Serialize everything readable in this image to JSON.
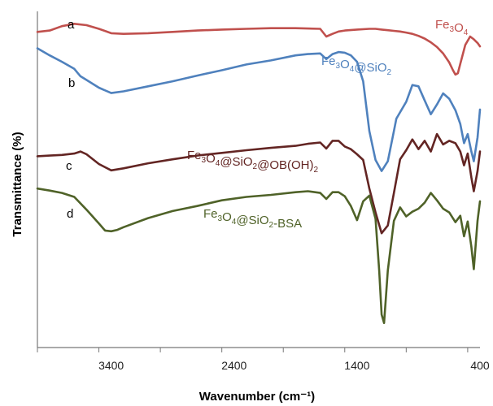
{
  "chart_data": {
    "type": "line",
    "xlabel": "Wavenumber (cm⁻¹)",
    "ylabel": "Transmittance (%)",
    "x_reversed": true,
    "xlim": [
      4000,
      400
    ],
    "xticks": [
      3400,
      2400,
      1400,
      400
    ],
    "ylim": [
      0,
      100
    ],
    "grid": false,
    "series": [
      {
        "letter": "a",
        "name_parts": [
          [
            "Fe",
            "n"
          ],
          [
            "3",
            "s"
          ],
          [
            "O",
            "n"
          ],
          [
            "4",
            "s"
          ]
        ],
        "color": "#c0504d",
        "label_pos": [
          535,
          35
        ],
        "letter_pos": [
          83,
          35
        ],
        "x": [
          4000,
          3900,
          3800,
          3700,
          3600,
          3500,
          3400,
          3300,
          3100,
          2900,
          2700,
          2500,
          2300,
          2100,
          1900,
          1700,
          1650,
          1600,
          1550,
          1500,
          1400,
          1300,
          1250,
          1200,
          1150,
          1100,
          1050,
          1000,
          950,
          900,
          850,
          800,
          750,
          700,
          650,
          620,
          600,
          580,
          560,
          520,
          480,
          450,
          420,
          400
        ],
        "y": [
          93.9,
          94.3,
          95.6,
          96.3,
          95.9,
          94.8,
          93.5,
          93.3,
          93.5,
          93.9,
          94.3,
          94.6,
          94.8,
          95.0,
          95.0,
          94.8,
          92.5,
          93.3,
          94.0,
          94.3,
          94.6,
          94.8,
          94.8,
          94.6,
          94.4,
          94.2,
          94.0,
          93.7,
          93.3,
          92.7,
          91.9,
          90.8,
          89.4,
          87.5,
          84.8,
          82.5,
          81.2,
          81.6,
          84.4,
          90.0,
          92.5,
          91.7,
          90.6,
          89.6
        ]
      },
      {
        "letter": "b",
        "name_parts": [
          [
            "Fe",
            "n"
          ],
          [
            "3",
            "s"
          ],
          [
            "O",
            "n"
          ],
          [
            "4",
            "s"
          ],
          [
            "@SiO",
            "n"
          ],
          [
            "2",
            "s"
          ]
        ],
        "color": "#4f81bd",
        "label_pos": [
          395,
          80
        ],
        "letter_pos": [
          84,
          107
        ],
        "x": [
          4000,
          3900,
          3800,
          3700,
          3650,
          3600,
          3500,
          3400,
          3300,
          3100,
          2900,
          2700,
          2500,
          2300,
          2100,
          1900,
          1800,
          1700,
          1650,
          1600,
          1550,
          1500,
          1450,
          1400,
          1350,
          1300,
          1250,
          1200,
          1150,
          1100,
          1080,
          1000,
          950,
          900,
          850,
          800,
          750,
          700,
          650,
          600,
          560,
          530,
          500,
          470,
          450,
          420,
          400
        ],
        "y": [
          89.0,
          86.9,
          85.0,
          82.9,
          80.7,
          79.6,
          77.3,
          75.7,
          76.2,
          77.7,
          79.2,
          80.9,
          82.5,
          84.2,
          85.4,
          86.9,
          87.3,
          87.5,
          85.8,
          87.3,
          87.9,
          87.7,
          86.9,
          85.0,
          79.2,
          64.4,
          55.8,
          52.5,
          55.4,
          64.4,
          68.1,
          73.1,
          78.1,
          77.7,
          73.5,
          69.4,
          72.3,
          75.6,
          74.0,
          70.6,
          66.5,
          60.8,
          63.5,
          58.3,
          55.4,
          62.5,
          70.8
        ]
      },
      {
        "letter": "c",
        "name_parts": [
          [
            "Fe",
            "n"
          ],
          [
            "3",
            "s"
          ],
          [
            "O",
            "n"
          ],
          [
            "4",
            "s"
          ],
          [
            "@SiO",
            "n"
          ],
          [
            "2",
            "s"
          ],
          [
            "@OB(OH)",
            "n"
          ],
          [
            "2",
            "s"
          ]
        ],
        "color": "#632523",
        "label_pos": [
          230,
          196
        ],
        "letter_pos": [
          81,
          209
        ],
        "x": [
          4000,
          3900,
          3800,
          3700,
          3650,
          3600,
          3500,
          3400,
          3300,
          3100,
          2900,
          2700,
          2500,
          2300,
          2100,
          1900,
          1800,
          1700,
          1650,
          1600,
          1550,
          1500,
          1450,
          1400,
          1350,
          1300,
          1250,
          1200,
          1150,
          1100,
          1050,
          1000,
          950,
          900,
          850,
          800,
          750,
          700,
          650,
          600,
          560,
          530,
          500,
          470,
          450,
          420,
          400
        ],
        "y": [
          56.9,
          57.1,
          57.3,
          57.7,
          58.3,
          57.5,
          54.6,
          52.7,
          53.3,
          54.8,
          56.0,
          57.1,
          57.9,
          58.7,
          59.4,
          60.0,
          60.6,
          61.0,
          59.2,
          61.5,
          61.5,
          59.8,
          59.0,
          57.5,
          55.8,
          47.3,
          40.2,
          34.0,
          36.3,
          46.0,
          56.0,
          58.7,
          61.9,
          59.0,
          61.5,
          58.3,
          63.5,
          60.4,
          61.5,
          60.8,
          58.3,
          54.2,
          57.7,
          50.6,
          46.5,
          52.5,
          58.3
        ]
      },
      {
        "letter": "d",
        "name_parts": [
          [
            "Fe",
            "n"
          ],
          [
            "3",
            "s"
          ],
          [
            "O",
            "n"
          ],
          [
            "4",
            "s"
          ],
          [
            "@SiO",
            "n"
          ],
          [
            "2",
            "s"
          ],
          [
            "-BSA",
            "n"
          ]
        ],
        "color": "#4f6228",
        "label_pos": [
          250,
          268
        ],
        "letter_pos": [
          82,
          268
        ],
        "x": [
          4000,
          3900,
          3800,
          3700,
          3600,
          3500,
          3450,
          3400,
          3350,
          3300,
          3100,
          2900,
          2700,
          2500,
          2300,
          2100,
          1900,
          1800,
          1700,
          1650,
          1600,
          1550,
          1500,
          1450,
          1400,
          1350,
          1300,
          1250,
          1220,
          1200,
          1180,
          1150,
          1100,
          1050,
          1000,
          950,
          900,
          850,
          800,
          750,
          700,
          650,
          600,
          560,
          530,
          500,
          470,
          450,
          420,
          400
        ],
        "y": [
          47.3,
          46.7,
          46.0,
          44.8,
          41.0,
          36.9,
          34.8,
          34.6,
          35.0,
          35.8,
          38.5,
          40.6,
          42.1,
          43.8,
          44.8,
          45.4,
          46.2,
          46.5,
          46.0,
          44.2,
          46.2,
          46.2,
          45.0,
          42.1,
          37.9,
          43.5,
          45.2,
          38.3,
          22.9,
          9.8,
          7.3,
          22.9,
          37.7,
          41.7,
          39.0,
          40.4,
          41.3,
          43.1,
          46.0,
          43.8,
          41.3,
          40.2,
          37.3,
          39.2,
          33.1,
          37.5,
          30.0,
          23.3,
          37.7,
          43.5
        ]
      }
    ]
  }
}
